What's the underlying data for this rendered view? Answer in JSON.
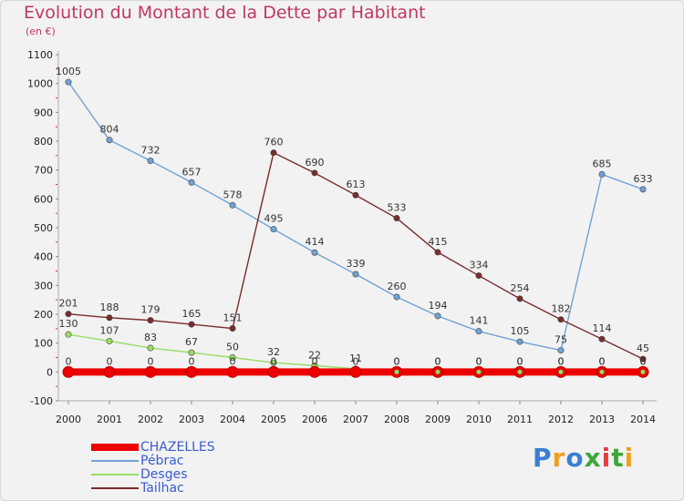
{
  "title": "Evolution du Montant de la Dette par Habitant",
  "subtitle": "(en €)",
  "brand": {
    "text": "Proxiti",
    "colors": [
      "#3a7fd4",
      "#f0a020",
      "#3a7fd4",
      "#3aa83a",
      "#e04040",
      "#3aa83a",
      "#f0a020"
    ]
  },
  "chart_data": {
    "type": "line",
    "title": "Evolution du Montant de la Dette par Habitant",
    "ylabel": "(en €)",
    "xlabel": "",
    "x": [
      "2000",
      "2001",
      "2002",
      "2003",
      "2004",
      "2005",
      "2006",
      "2007",
      "2008",
      "2009",
      "2010",
      "2011",
      "2012",
      "2013",
      "2014"
    ],
    "ylim": [
      -100,
      1100
    ],
    "yticks": [
      -100,
      0,
      100,
      200,
      300,
      400,
      500,
      600,
      700,
      800,
      900,
      1000,
      1100
    ],
    "grid": false,
    "legend_position": "bottom-left",
    "series": [
      {
        "name": "CHAZELLES",
        "color": "#ee0000",
        "values": [
          0,
          0,
          0,
          0,
          0,
          0,
          0,
          0,
          0,
          0,
          0,
          0,
          0,
          0,
          0
        ]
      },
      {
        "name": "Pébrac",
        "color": "#6fa3d6",
        "values": [
          1005,
          804,
          732,
          657,
          578,
          495,
          414,
          339,
          260,
          194,
          141,
          105,
          75,
          685,
          633
        ]
      },
      {
        "name": "Desges",
        "color": "#99dd66",
        "values": [
          130,
          107,
          83,
          67,
          50,
          32,
          22,
          11,
          0,
          0,
          0,
          0,
          0,
          0,
          0
        ]
      },
      {
        "name": "Tailhac",
        "color": "#7a2b2b",
        "values": [
          201,
          188,
          179,
          165,
          151,
          760,
          690,
          613,
          533,
          415,
          334,
          254,
          182,
          114,
          45
        ]
      }
    ]
  }
}
